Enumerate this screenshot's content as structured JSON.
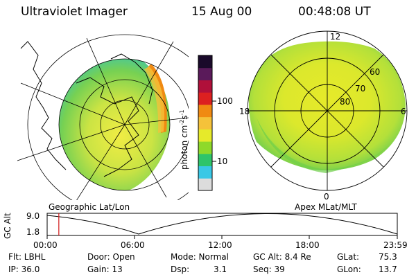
{
  "header": {
    "instrument": "Ultraviolet Imager",
    "date": "15 Aug 00",
    "time": "00:48:08 UT"
  },
  "left_map": {
    "label": "Geographic Lat/Lon"
  },
  "right_map": {
    "label": "Apex MLat/MLT",
    "mlt_labels": [
      "12",
      "6",
      "0",
      "18"
    ],
    "mlat_labels": [
      "60",
      "70",
      "80"
    ]
  },
  "colorbar": {
    "tick_labels": [
      "100",
      "10"
    ],
    "unit": "photon cm",
    "unit_sup1": "-2",
    "unit_mid": "s",
    "unit_sup2": "-1",
    "colors": [
      "#dcdcdc",
      "#39c8e6",
      "#2ec46a",
      "#8ed92a",
      "#e6ea2a",
      "#f5c23a",
      "#f08a12",
      "#dc2020",
      "#b0103a",
      "#5a1a5a",
      "#1a0a2a"
    ]
  },
  "altitude_strip": {
    "axis_label": "GC Alt",
    "y_ticks": [
      "9.0",
      "1.8"
    ],
    "x_ticks": [
      "00:00",
      "06:00",
      "12:00",
      "18:00",
      "23:59"
    ],
    "marker_time_hours": 0.8
  },
  "info": {
    "row1": [
      "Flt: LBHL",
      "Door: Open",
      "Mode: Normal",
      "GC Alt: 8.4 Re",
      "GLat:",
      "75.3"
    ],
    "row2": [
      "IP: 36.0",
      "Gain: 13",
      "Dsp:",
      "3.1",
      "Seq: 39",
      "GLon:",
      "13.7"
    ]
  }
}
